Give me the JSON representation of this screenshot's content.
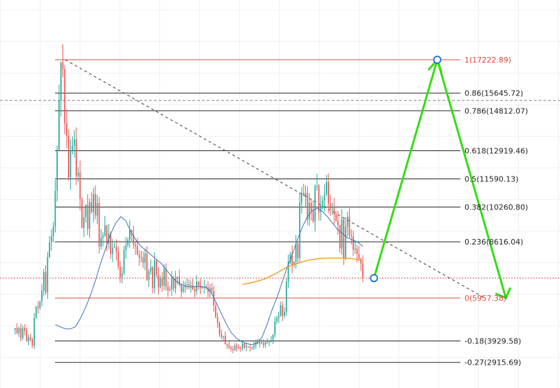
{
  "chart_data": {
    "type": "candlestick-fibonacci",
    "title": "",
    "grid": true,
    "colors": {
      "bull": "#26a69a",
      "bear": "#ef5350",
      "fib_line": "#222222",
      "fib_anchor": "#e2453c",
      "ma_fast": "#3b6fb6",
      "ma_slow": "#f39a1d",
      "projection": "#33dd11",
      "trendline": "#555555",
      "price_line": "#e2453c"
    },
    "fib_levels": [
      {
        "ratio": 1,
        "price": 17222.89,
        "label": "1(17222.89)",
        "anchor": true
      },
      {
        "ratio": 0.86,
        "price": 15645.72,
        "label": "0.86(15645.72)"
      },
      {
        "ratio": 0.786,
        "price": 14812.07,
        "label": "0.786(14812.07)"
      },
      {
        "ratio": 0.618,
        "price": 12919.46,
        "label": "0.618(12919.46)"
      },
      {
        "ratio": 0.5,
        "price": 11590.13,
        "label": "0.5(11590.13)"
      },
      {
        "ratio": 0.382,
        "price": 10260.8,
        "label": "0.382(10260.80)"
      },
      {
        "ratio": 0.236,
        "price": 8616.04,
        "label": "0.236(8616.04)"
      },
      {
        "ratio": 0,
        "price": 5957.38,
        "label": "0(5957.38)",
        "anchor": true
      },
      {
        "ratio": -0.18,
        "price": 3929.58,
        "label": "-0.18(3929.58)"
      },
      {
        "ratio": -0.27,
        "price": 2915.69,
        "label": "-0.27(2915.69)"
      }
    ],
    "current_price": 6900,
    "reference_price": 15300,
    "ylim": [
      2000,
      19000
    ],
    "xlim": [
      0,
      200
    ],
    "candle_close": [
      4540,
      4300,
      4540,
      4060,
      4540,
      4410,
      3910,
      4100,
      4000,
      3710,
      5010,
      5550,
      5500,
      5800,
      6310,
      7200,
      6230,
      7900,
      8580,
      8870,
      9320,
      11030,
      12980,
      15290,
      17100,
      16780,
      14210,
      13630,
      11650,
      12930,
      13160,
      13460,
      11720,
      11890,
      10630,
      9270,
      9780,
      10360,
      9230,
      10490,
      10030,
      10870,
      9860,
      10450,
      8400,
      8820,
      8920,
      9380,
      8550,
      9010,
      8040,
      8350,
      8380,
      8140,
      7450,
      6940,
      7140,
      8230,
      8460,
      8710,
      9180,
      8930,
      8480,
      8410,
      8010,
      7860,
      7880,
      7620,
      8060,
      6820,
      7200,
      7420,
      6430,
      7740,
      7070,
      6460,
      6890,
      6540,
      7330,
      6490,
      6310,
      6370,
      6920,
      6410,
      6900,
      6970,
      6570,
      6260,
      6480,
      6590,
      6610,
      6530,
      6580,
      6360,
      6280,
      6720,
      6550,
      6440,
      6490,
      6510,
      6470,
      6250,
      6440,
      6290,
      5590,
      5050,
      4770,
      4260,
      4120,
      4160,
      3780,
      3720,
      3630,
      3550,
      3500,
      3700,
      3620,
      3590,
      3580,
      3810,
      3630,
      3670,
      3620,
      3590,
      3620,
      3710,
      3890,
      3800,
      3880,
      3830,
      3750,
      3860,
      3870,
      3890,
      3960,
      4220,
      4850,
      5020,
      5100,
      5610,
      5120,
      5300,
      6730,
      7650,
      8050,
      7500,
      7680,
      8520,
      7850,
      10460,
      10930,
      10800,
      10910,
      9680,
      10470,
      10070,
      9580,
      11250,
      11270,
      10020,
      10330,
      10570,
      10860,
      11440,
      10430,
      10180,
      10220,
      9920,
      9600,
      9410,
      8300,
      9680,
      7850,
      9340,
      9800,
      8900,
      8870,
      8240,
      8300,
      8040,
      7800,
      7600,
      6900
    ],
    "ma_fast": [
      4700,
      4600,
      4500,
      4500,
      4600,
      5000,
      5500,
      6100,
      6800,
      7600,
      8300,
      9000,
      9500,
      9800,
      9600,
      9100,
      8700,
      8400,
      8200,
      8000,
      7800,
      7600,
      7300,
      7000,
      6750,
      6600,
      6500,
      6480,
      6500,
      6500,
      6450,
      6200,
      5700,
      5200,
      4700,
      4300,
      4050,
      3900,
      3800,
      3760,
      3820,
      4100,
      4700,
      5400,
      6000,
      6700,
      7400,
      8000,
      8700,
      9300,
      9800,
      10100,
      10200,
      10050,
      9800,
      9500,
      9200,
      9000,
      8800,
      8700,
      8600,
      8400
    ],
    "ma_slow": [
      6600,
      6700,
      6850,
      7100,
      7400,
      7600,
      7750,
      7820,
      7850,
      7850,
      7820,
      7720
    ],
    "annotations": {
      "trendline_from_price": 17222.89,
      "trendline_to_price": 5957.38,
      "projection": [
        6900,
        17222.89,
        5957.38
      ]
    }
  }
}
